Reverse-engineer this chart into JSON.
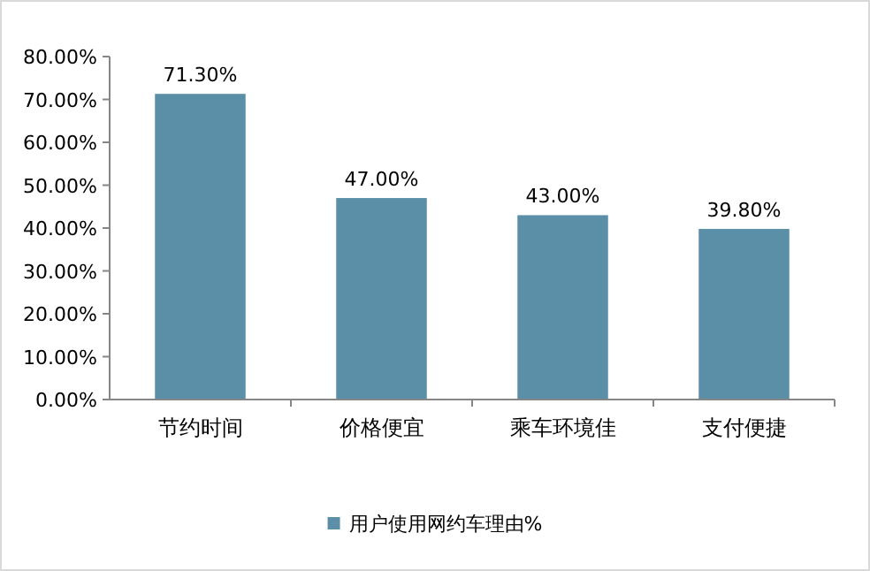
{
  "chart_data": {
    "type": "bar",
    "categories": [
      "节约时间",
      "价格便宜",
      "乘车环境佳",
      "支付便捷"
    ],
    "series": [
      {
        "name": "用户使用网约车理由%",
        "color": "#5b8fa8",
        "values": [
          71.3,
          47.0,
          43.0,
          39.8
        ],
        "value_labels": [
          "71.30%",
          "47.00%",
          "43.00%",
          "39.80%"
        ]
      }
    ],
    "ylim": [
      0,
      80
    ],
    "yticks": [
      {
        "value": 0,
        "label": "0.00%"
      },
      {
        "value": 10,
        "label": "10.00%"
      },
      {
        "value": 20,
        "label": "20.00%"
      },
      {
        "value": 30,
        "label": "30.00%"
      },
      {
        "value": 40,
        "label": "40.00%"
      },
      {
        "value": 50,
        "label": "50.00%"
      },
      {
        "value": 60,
        "label": "60.00%"
      },
      {
        "value": 70,
        "label": "70.00%"
      },
      {
        "value": 80,
        "label": "80.00%"
      }
    ],
    "legend": "bottom"
  }
}
